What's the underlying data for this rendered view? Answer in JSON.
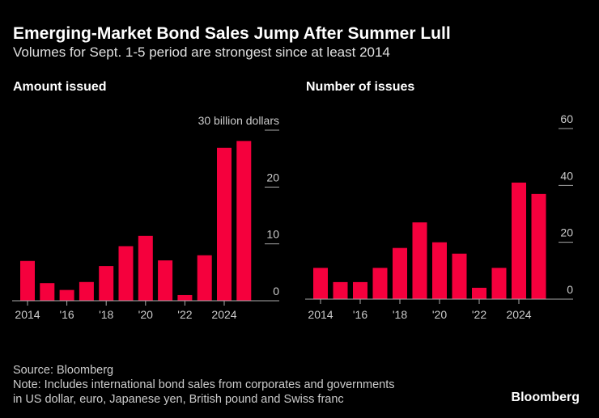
{
  "title": "Emerging-Market Bond Sales Jump After Summer Lull",
  "subtitle": "Volumes for Sept. 1-5 period are strongest since at least 2014",
  "chart_data": [
    {
      "type": "bar",
      "title": "Amount issued",
      "categories": [
        "2014",
        null,
        "'16",
        null,
        "'18",
        null,
        "'20",
        null,
        "'22",
        null,
        "2024",
        null
      ],
      "values": [
        7.0,
        3.1,
        1.9,
        3.3,
        6.1,
        9.6,
        11.4,
        7.1,
        1.0,
        8.0,
        26.9,
        28.1
      ],
      "color": "#f5003d",
      "ylim": [
        0,
        30
      ],
      "yticks": [
        0,
        10,
        20,
        {
          "value": 30,
          "label": "30 billion dollars"
        }
      ]
    },
    {
      "type": "bar",
      "title": "Number of issues",
      "categories": [
        "2014",
        null,
        "'16",
        null,
        "'18",
        null,
        "'20",
        null,
        "'22",
        null,
        "2024",
        null
      ],
      "values": [
        11,
        6,
        6,
        11,
        18,
        27,
        20,
        16,
        4,
        11,
        41,
        37
      ],
      "color": "#f5003d",
      "ylim": [
        0,
        60
      ],
      "yticks": [
        0,
        20,
        40,
        60
      ]
    }
  ],
  "source": "Source: Bloomberg",
  "note": [
    "Note: Includes international bond sales from corporates and governments",
    "in US dollar, euro, Japanese yen, British pound and Swiss franc"
  ],
  "brand": "Bloomberg"
}
